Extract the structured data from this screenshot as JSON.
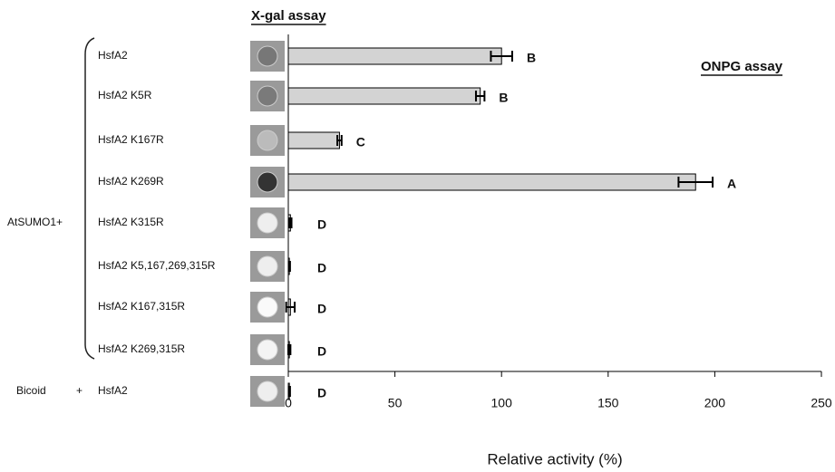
{
  "chart_data": {
    "type": "bar",
    "orientation": "horizontal",
    "title": "X-gal assay",
    "annotation": "ONPG assay",
    "xlabel": "Relative activity (%)",
    "group_label": "AtSUMO1+",
    "control_label": "Bicoid",
    "control_joiner": "+",
    "categories": [
      "HsfA2",
      "HsfA2 K5R",
      "HsfA2 K167R",
      "HsfA2 K269R",
      "HsfA2 K315R",
      "HsfA2 K5,167,269,315R",
      "HsfA2 K167,315R",
      "HsfA2 K269,315R",
      "HsfA2"
    ],
    "values": [
      100,
      90,
      24,
      191,
      1,
      0.5,
      1,
      0.5,
      0.5
    ],
    "errors": [
      5,
      2,
      1,
      8,
      0.5,
      0.3,
      2,
      0.5,
      0.3
    ],
    "letters": [
      "B",
      "B",
      "C",
      "A",
      "D",
      "D",
      "D",
      "D",
      "D"
    ],
    "color": "#d3d3d3",
    "xlim": [
      0,
      250
    ],
    "xticks": [
      0,
      50,
      100,
      150,
      200,
      250
    ]
  }
}
